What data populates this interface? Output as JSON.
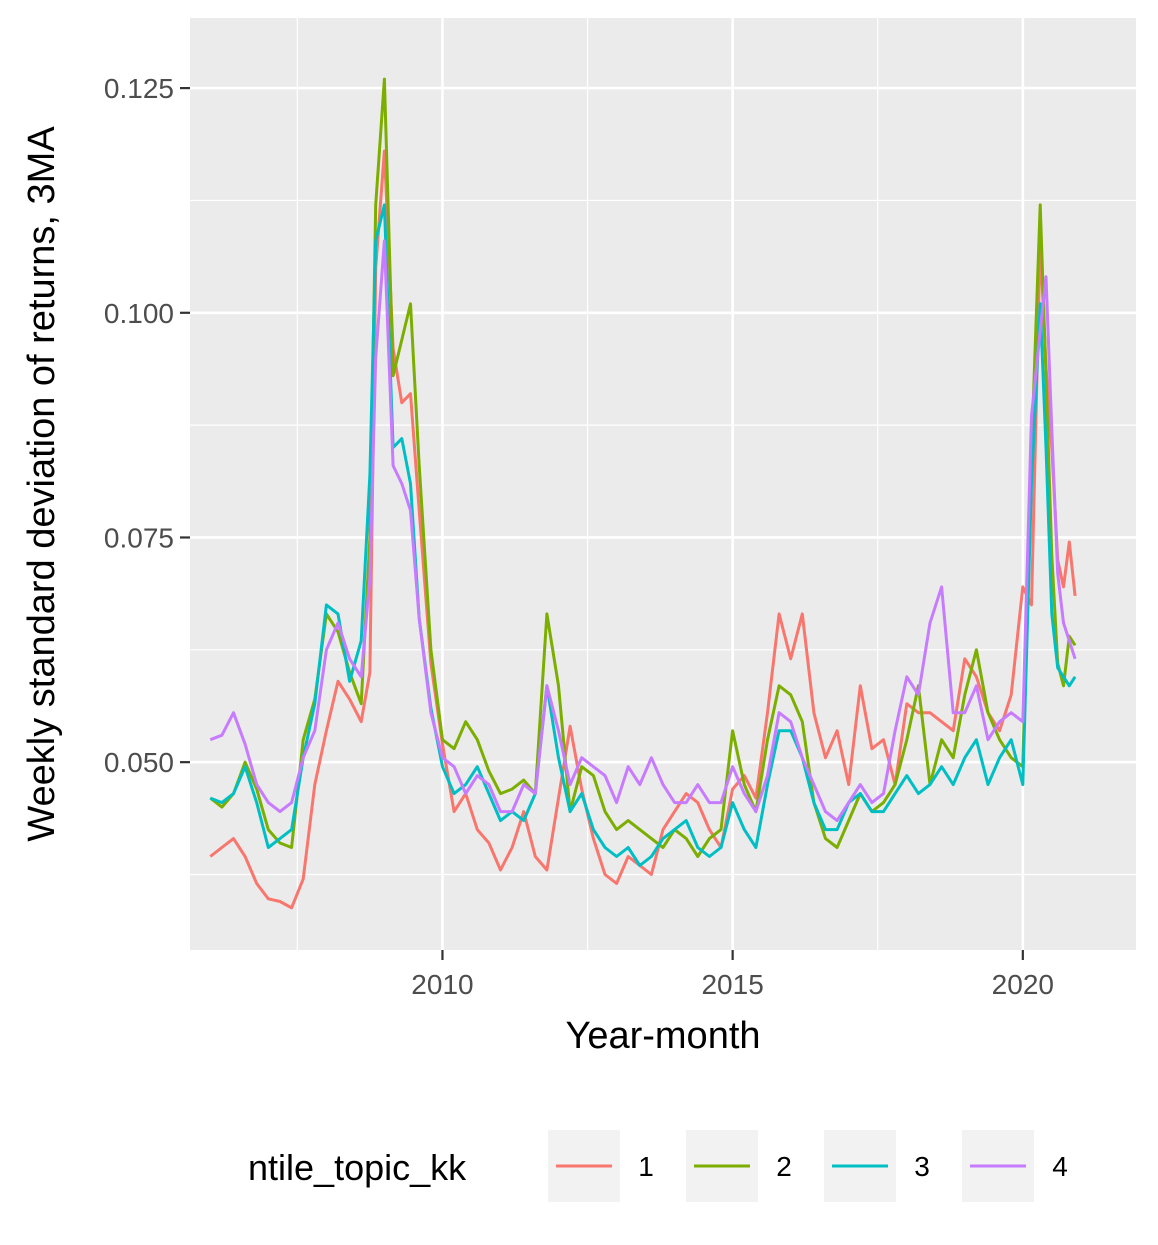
{
  "chart_data": {
    "type": "line",
    "xlabel": "Year-month",
    "ylabel": "Weekly standard deviation of returns, 3MA",
    "xlim": [
      2005.65,
      2021.95
    ],
    "ylim": [
      0.0291,
      0.1328
    ],
    "x_ticks": [
      2010,
      2015,
      2020
    ],
    "y_ticks": [
      0.05,
      0.075,
      0.1,
      0.125
    ],
    "x_tick_labels": [
      "2010",
      "2015",
      "2020"
    ],
    "y_tick_labels": [
      "0.050",
      "0.075",
      "0.100",
      "0.125"
    ],
    "grid": true,
    "legend_title": "ntile_topic_kk",
    "legend_position": "bottom",
    "series": [
      {
        "name": "1",
        "color": "#F8766D",
        "x": [
          2006.0,
          2006.2,
          2006.4,
          2006.6,
          2006.8,
          2007.0,
          2007.2,
          2007.4,
          2007.6,
          2007.8,
          2008.0,
          2008.2,
          2008.4,
          2008.6,
          2008.75,
          2008.85,
          2009.0,
          2009.15,
          2009.3,
          2009.45,
          2009.6,
          2009.8,
          2010.0,
          2010.2,
          2010.4,
          2010.6,
          2010.8,
          2011.0,
          2011.2,
          2011.4,
          2011.6,
          2011.8,
          2012.0,
          2012.2,
          2012.4,
          2012.6,
          2012.8,
          2013.0,
          2013.2,
          2013.4,
          2013.6,
          2013.8,
          2014.0,
          2014.2,
          2014.4,
          2014.6,
          2014.8,
          2015.0,
          2015.2,
          2015.4,
          2015.6,
          2015.8,
          2016.0,
          2016.2,
          2016.4,
          2016.6,
          2016.8,
          2017.0,
          2017.2,
          2017.4,
          2017.6,
          2017.8,
          2018.0,
          2018.2,
          2018.4,
          2018.6,
          2018.8,
          2019.0,
          2019.2,
          2019.4,
          2019.6,
          2019.8,
          2020.0,
          2020.15,
          2020.3,
          2020.4,
          2020.5,
          2020.6,
          2020.7,
          2020.8,
          2020.9
        ],
        "values": [
          0.0395,
          0.0405,
          0.0415,
          0.0395,
          0.0365,
          0.0348,
          0.0345,
          0.0338,
          0.037,
          0.0475,
          0.0535,
          0.059,
          0.057,
          0.0545,
          0.06,
          0.105,
          0.118,
          0.096,
          0.09,
          0.091,
          0.078,
          0.061,
          0.052,
          0.0445,
          0.0465,
          0.0425,
          0.041,
          0.038,
          0.0405,
          0.0445,
          0.0395,
          0.038,
          0.046,
          0.054,
          0.047,
          0.0415,
          0.0375,
          0.0365,
          0.0395,
          0.0385,
          0.0375,
          0.0425,
          0.0445,
          0.0465,
          0.0455,
          0.0425,
          0.0405,
          0.047,
          0.0485,
          0.046,
          0.0555,
          0.0665,
          0.0615,
          0.0665,
          0.0555,
          0.0505,
          0.0535,
          0.0475,
          0.0585,
          0.0515,
          0.0525,
          0.0475,
          0.0565,
          0.0555,
          0.0555,
          0.0545,
          0.0535,
          0.0615,
          0.0595,
          0.0555,
          0.0535,
          0.0575,
          0.0695,
          0.0675,
          0.108,
          0.094,
          0.085,
          0.0725,
          0.0695,
          0.0745,
          0.0685
        ]
      },
      {
        "name": "2",
        "color": "#7CAE00",
        "x": [
          2006.0,
          2006.2,
          2006.4,
          2006.6,
          2006.8,
          2007.0,
          2007.2,
          2007.4,
          2007.6,
          2007.8,
          2008.0,
          2008.2,
          2008.4,
          2008.6,
          2008.75,
          2008.85,
          2009.0,
          2009.15,
          2009.3,
          2009.45,
          2009.6,
          2009.8,
          2010.0,
          2010.2,
          2010.4,
          2010.6,
          2010.8,
          2011.0,
          2011.2,
          2011.4,
          2011.6,
          2011.8,
          2012.0,
          2012.2,
          2012.4,
          2012.6,
          2012.8,
          2013.0,
          2013.2,
          2013.4,
          2013.6,
          2013.8,
          2014.0,
          2014.2,
          2014.4,
          2014.6,
          2014.8,
          2015.0,
          2015.2,
          2015.4,
          2015.6,
          2015.8,
          2016.0,
          2016.2,
          2016.4,
          2016.6,
          2016.8,
          2017.0,
          2017.2,
          2017.4,
          2017.6,
          2017.8,
          2018.0,
          2018.2,
          2018.4,
          2018.6,
          2018.8,
          2019.0,
          2019.2,
          2019.4,
          2019.6,
          2019.8,
          2020.0,
          2020.15,
          2020.3,
          2020.4,
          2020.5,
          2020.6,
          2020.7,
          2020.8,
          2020.9
        ],
        "values": [
          0.046,
          0.045,
          0.0465,
          0.05,
          0.047,
          0.0425,
          0.041,
          0.0405,
          0.0525,
          0.057,
          0.0665,
          0.0645,
          0.06,
          0.0565,
          0.075,
          0.112,
          0.126,
          0.093,
          0.097,
          0.101,
          0.083,
          0.0625,
          0.0525,
          0.0515,
          0.0545,
          0.0525,
          0.049,
          0.0465,
          0.047,
          0.048,
          0.0465,
          0.0665,
          0.0585,
          0.0445,
          0.0495,
          0.0485,
          0.0445,
          0.0425,
          0.0435,
          0.0425,
          0.0415,
          0.0405,
          0.0425,
          0.0415,
          0.0395,
          0.0415,
          0.0425,
          0.0535,
          0.0475,
          0.0445,
          0.0525,
          0.0585,
          0.0575,
          0.0545,
          0.0455,
          0.0415,
          0.0405,
          0.0435,
          0.0465,
          0.0445,
          0.0455,
          0.0475,
          0.0525,
          0.0585,
          0.0475,
          0.0525,
          0.0505,
          0.0575,
          0.0625,
          0.0555,
          0.0525,
          0.0505,
          0.0495,
          0.0845,
          0.112,
          0.093,
          0.073,
          0.061,
          0.0585,
          0.064,
          0.063
        ]
      },
      {
        "name": "3",
        "color": "#00BFC4",
        "x": [
          2006.0,
          2006.2,
          2006.4,
          2006.6,
          2006.8,
          2007.0,
          2007.2,
          2007.4,
          2007.6,
          2007.8,
          2008.0,
          2008.2,
          2008.4,
          2008.6,
          2008.75,
          2008.85,
          2009.0,
          2009.15,
          2009.3,
          2009.45,
          2009.6,
          2009.8,
          2010.0,
          2010.2,
          2010.4,
          2010.6,
          2010.8,
          2011.0,
          2011.2,
          2011.4,
          2011.6,
          2011.8,
          2012.0,
          2012.2,
          2012.4,
          2012.6,
          2012.8,
          2013.0,
          2013.2,
          2013.4,
          2013.6,
          2013.8,
          2014.0,
          2014.2,
          2014.4,
          2014.6,
          2014.8,
          2015.0,
          2015.2,
          2015.4,
          2015.6,
          2015.8,
          2016.0,
          2016.2,
          2016.4,
          2016.6,
          2016.8,
          2017.0,
          2017.2,
          2017.4,
          2017.6,
          2017.8,
          2018.0,
          2018.2,
          2018.4,
          2018.6,
          2018.8,
          2019.0,
          2019.2,
          2019.4,
          2019.6,
          2019.8,
          2020.0,
          2020.15,
          2020.3,
          2020.4,
          2020.5,
          2020.6,
          2020.7,
          2020.8,
          2020.9
        ],
        "values": [
          0.046,
          0.0455,
          0.0465,
          0.0495,
          0.0455,
          0.0405,
          0.0415,
          0.0425,
          0.0505,
          0.0565,
          0.0675,
          0.0665,
          0.059,
          0.0635,
          0.082,
          0.108,
          0.112,
          0.085,
          0.086,
          0.081,
          0.066,
          0.056,
          0.0495,
          0.0465,
          0.0475,
          0.0495,
          0.0465,
          0.0435,
          0.0445,
          0.0435,
          0.0465,
          0.0585,
          0.0505,
          0.0445,
          0.0465,
          0.0425,
          0.0405,
          0.0395,
          0.0405,
          0.0385,
          0.0395,
          0.0415,
          0.0425,
          0.0435,
          0.0405,
          0.0395,
          0.0405,
          0.0455,
          0.0425,
          0.0405,
          0.0475,
          0.0535,
          0.0535,
          0.0505,
          0.0455,
          0.0425,
          0.0425,
          0.0455,
          0.0465,
          0.0445,
          0.0445,
          0.0465,
          0.0485,
          0.0465,
          0.0475,
          0.0495,
          0.0475,
          0.0505,
          0.0525,
          0.0475,
          0.0505,
          0.0525,
          0.0475,
          0.081,
          0.101,
          0.085,
          0.0665,
          0.0605,
          0.0595,
          0.0585,
          0.0595
        ]
      },
      {
        "name": "4",
        "color": "#C77CFF",
        "x": [
          2006.0,
          2006.2,
          2006.4,
          2006.6,
          2006.8,
          2007.0,
          2007.2,
          2007.4,
          2007.6,
          2007.8,
          2008.0,
          2008.2,
          2008.4,
          2008.6,
          2008.75,
          2008.85,
          2009.0,
          2009.15,
          2009.3,
          2009.45,
          2009.6,
          2009.8,
          2010.0,
          2010.2,
          2010.4,
          2010.6,
          2010.8,
          2011.0,
          2011.2,
          2011.4,
          2011.6,
          2011.8,
          2012.0,
          2012.2,
          2012.4,
          2012.6,
          2012.8,
          2013.0,
          2013.2,
          2013.4,
          2013.6,
          2013.8,
          2014.0,
          2014.2,
          2014.4,
          2014.6,
          2014.8,
          2015.0,
          2015.2,
          2015.4,
          2015.6,
          2015.8,
          2016.0,
          2016.2,
          2016.4,
          2016.6,
          2016.8,
          2017.0,
          2017.2,
          2017.4,
          2017.6,
          2017.8,
          2018.0,
          2018.2,
          2018.4,
          2018.6,
          2018.8,
          2019.0,
          2019.2,
          2019.4,
          2019.6,
          2019.8,
          2020.0,
          2020.15,
          2020.3,
          2020.4,
          2020.5,
          2020.6,
          2020.7,
          2020.8,
          2020.9
        ],
        "values": [
          0.0525,
          0.053,
          0.0555,
          0.052,
          0.0475,
          0.0455,
          0.0445,
          0.0455,
          0.0505,
          0.0535,
          0.0625,
          0.0655,
          0.0615,
          0.0595,
          0.0705,
          0.095,
          0.108,
          0.083,
          0.081,
          0.078,
          0.066,
          0.0555,
          0.0505,
          0.0495,
          0.0465,
          0.0485,
          0.0475,
          0.0445,
          0.0445,
          0.0475,
          0.0465,
          0.0585,
          0.0535,
          0.0475,
          0.0505,
          0.0495,
          0.0485,
          0.0455,
          0.0495,
          0.0475,
          0.0505,
          0.0475,
          0.0455,
          0.0455,
          0.0475,
          0.0455,
          0.0455,
          0.0495,
          0.0465,
          0.0445,
          0.0485,
          0.0555,
          0.0545,
          0.0505,
          0.0475,
          0.0445,
          0.0435,
          0.0455,
          0.0475,
          0.0455,
          0.0465,
          0.0535,
          0.0595,
          0.0575,
          0.0655,
          0.0695,
          0.0555,
          0.0555,
          0.0585,
          0.0525,
          0.0545,
          0.0555,
          0.0545,
          0.0885,
          0.098,
          0.104,
          0.087,
          0.071,
          0.0655,
          0.0635,
          0.0615
        ]
      }
    ]
  }
}
